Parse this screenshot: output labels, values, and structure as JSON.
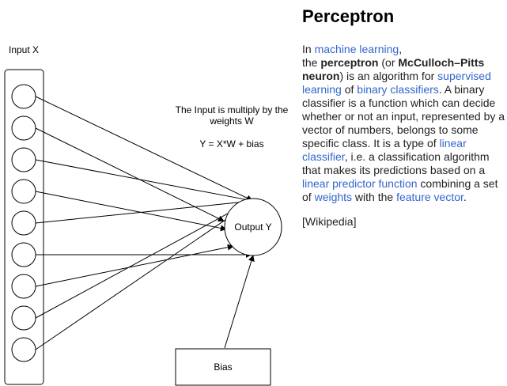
{
  "diagram": {
    "input_label": "Input X",
    "caption_line1": "The Input is multiply by the",
    "caption_line2": "weights W",
    "formula": "Y = X*W + bias",
    "output_label": "Output Y",
    "bias_label": "Bias",
    "input_node_count": 9
  },
  "article": {
    "title": "Perceptron",
    "segments": [
      {
        "text": "In ",
        "type": "text"
      },
      {
        "text": "machine learning",
        "type": "link"
      },
      {
        "text": ",",
        "type": "text"
      },
      {
        "text": "the ",
        "type": "text",
        "break_before": true
      },
      {
        "text": "perceptron",
        "type": "bold"
      },
      {
        "text": " (or ",
        "type": "text"
      },
      {
        "text": "McCulloch–Pitts neuron",
        "type": "bold"
      },
      {
        "text": ") is an algorithm for ",
        "type": "text"
      },
      {
        "text": "supervised learning",
        "type": "link"
      },
      {
        "text": " of ",
        "type": "text"
      },
      {
        "text": "binary classifiers",
        "type": "link"
      },
      {
        "text": ". A binary classifier is a function which can decide whether or not an input, represented by a vector of numbers, belongs to some specific class. It is a type of ",
        "type": "text"
      },
      {
        "text": "linear classifier",
        "type": "link"
      },
      {
        "text": ", i.e. a classification algorithm that makes its predictions based on a ",
        "type": "text"
      },
      {
        "text": "linear predictor function",
        "type": "link"
      },
      {
        "text": " combining a set of ",
        "type": "text"
      },
      {
        "text": "weights",
        "type": "link"
      },
      {
        "text": " with the ",
        "type": "text"
      },
      {
        "text": "feature vector",
        "type": "link"
      },
      {
        "text": ".",
        "type": "text"
      }
    ],
    "citation": "[Wikipedia]"
  }
}
